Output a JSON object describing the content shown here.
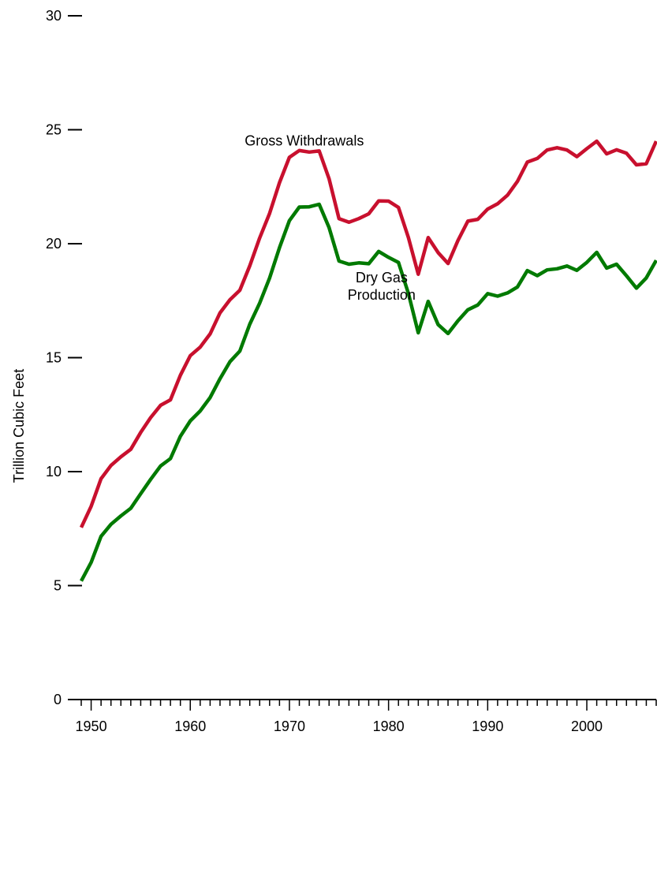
{
  "chart_data": {
    "type": "line",
    "title": "",
    "xlabel": "",
    "ylabel": "Trillion Cubic Feet",
    "xlim": [
      1949,
      2007
    ],
    "ylim": [
      0,
      30
    ],
    "y_ticks": [
      0,
      5,
      10,
      15,
      20,
      25,
      30
    ],
    "x_tick_labels": [
      1950,
      1960,
      1970,
      1980,
      1990,
      2000
    ],
    "grid": false,
    "legend": "none",
    "x": [
      1949,
      1950,
      1951,
      1952,
      1953,
      1954,
      1955,
      1956,
      1957,
      1958,
      1959,
      1960,
      1961,
      1962,
      1963,
      1964,
      1965,
      1966,
      1967,
      1968,
      1969,
      1970,
      1971,
      1972,
      1973,
      1974,
      1975,
      1976,
      1977,
      1978,
      1979,
      1980,
      1981,
      1982,
      1983,
      1984,
      1985,
      1986,
      1987,
      1988,
      1989,
      1990,
      1991,
      1992,
      1993,
      1994,
      1995,
      1996,
      1997,
      1998,
      1999,
      2000,
      2001,
      2002,
      2003,
      2004,
      2005,
      2006,
      2007
    ],
    "series": [
      {
        "name": "Gross Withdrawals",
        "color": "#c8102e",
        "values": [
          7.55,
          8.48,
          9.69,
          10.27,
          10.65,
          10.98,
          11.72,
          12.37,
          12.91,
          13.15,
          14.23,
          15.09,
          15.46,
          16.04,
          16.97,
          17.54,
          17.96,
          19.03,
          20.25,
          21.33,
          22.68,
          23.79,
          24.09,
          24.02,
          24.07,
          22.85,
          21.1,
          20.94,
          21.1,
          21.31,
          21.88,
          21.87,
          21.59,
          20.27,
          18.66,
          20.27,
          19.61,
          19.13,
          20.14,
          20.99,
          21.07,
          21.52,
          21.75,
          22.13,
          22.73,
          23.58,
          23.74,
          24.11,
          24.21,
          24.11,
          23.82,
          24.17,
          24.5,
          23.94,
          24.12,
          23.97,
          23.46,
          23.51,
          24.5
        ]
      },
      {
        "name": "Dry Gas Production",
        "color": "#007a00",
        "values": [
          5.2,
          6.02,
          7.16,
          7.69,
          8.06,
          8.39,
          9.03,
          9.66,
          10.25,
          10.57,
          11.55,
          12.23,
          12.66,
          13.25,
          14.08,
          14.82,
          15.29,
          16.47,
          17.39,
          18.49,
          19.83,
          21.01,
          21.61,
          21.62,
          21.73,
          20.71,
          19.24,
          19.1,
          19.16,
          19.12,
          19.66,
          19.4,
          19.18,
          17.82,
          16.09,
          17.47,
          16.45,
          16.06,
          16.62,
          17.1,
          17.31,
          17.81,
          17.7,
          17.84,
          18.1,
          18.82,
          18.6,
          18.85,
          18.9,
          19.02,
          18.83,
          19.18,
          19.62,
          18.93,
          19.1,
          18.59,
          18.05,
          18.5,
          19.27
        ]
      }
    ],
    "annotations": [
      {
        "series": "Gross Withdrawals",
        "text": "Gross Withdrawals",
        "anchor_x": 1971.5,
        "anchor_y": 24.3
      },
      {
        "series": "Dry Gas Production",
        "text_lines": [
          "Dry Gas",
          "Production"
        ],
        "anchor_x": 1979.3,
        "anchor_y": 18.3
      }
    ]
  }
}
